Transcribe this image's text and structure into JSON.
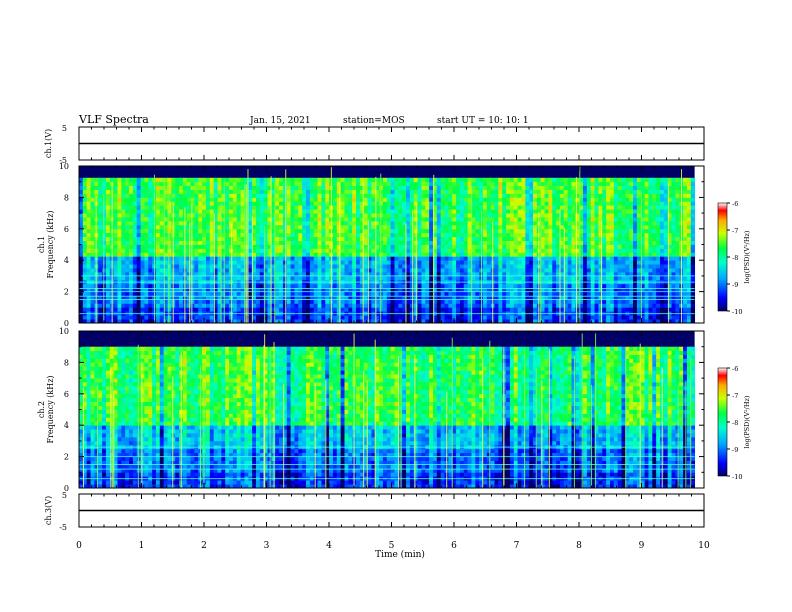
{
  "header": {
    "title": "VLF Spectra",
    "date": "Jan. 15, 2021",
    "station": "station=MOS",
    "start": "start  UT =   10: 10: 1"
  },
  "colors": {
    "spectrum_low": "#000066",
    "spectrum_mid": "#00ff66",
    "spectrum_high": "#ff0000",
    "line_yellow": "#ffff44",
    "line_cyan": "#44ffff"
  },
  "chart_data": [
    {
      "type": "line",
      "panel": "ch1-waveform",
      "ylabel": "ch.1(V)",
      "ylim": [
        -5,
        5
      ],
      "yticks": [
        "5",
        "-5"
      ],
      "xlim": [
        0,
        10
      ],
      "values_description_note": "",
      "x": [
        0,
        10
      ],
      "y": [
        0,
        0
      ]
    },
    {
      "type": "heatmap",
      "panel": "ch1-spectrogram",
      "ylabel": "ch.1\nFrequency (kHz)",
      "xlim": [
        0,
        10
      ],
      "ylim": [
        0,
        10
      ],
      "yticks": [
        "0",
        "2",
        "4",
        "6",
        "8",
        "10"
      ],
      "colorbar": {
        "label": "log(PSD)(V²/Hz)",
        "ticks": [
          "-6",
          "-7",
          "-8",
          "-9",
          "-10"
        ],
        "range": [
          -10,
          -6
        ]
      },
      "bands": [
        {
          "from": 0,
          "to": 1,
          "level": -9.3
        },
        {
          "from": 1,
          "to": 2.5,
          "level": -9.0
        },
        {
          "from": 2.5,
          "to": 4.2,
          "level": -8.7
        },
        {
          "from": 4.2,
          "to": 9.2,
          "level": -7.6
        },
        {
          "from": 9.2,
          "to": 10,
          "level": -10
        }
      ],
      "horizontal_lines_khz": [
        0.6,
        1.5,
        1.7,
        2.0,
        2.2,
        2.6,
        3.0
      ],
      "end_time_min": 9.85
    },
    {
      "type": "heatmap",
      "panel": "ch2-spectrogram",
      "ylabel": "ch.2\nFrequency (kHz)",
      "xlim": [
        0,
        10
      ],
      "ylim": [
        0,
        10
      ],
      "yticks": [
        "0",
        "2",
        "4",
        "6",
        "8",
        "10"
      ],
      "colorbar": {
        "label": "log(PSD)(V²/Hz)",
        "ticks": [
          "-6",
          "-7",
          "-8",
          "-9",
          "-10"
        ],
        "range": [
          -10,
          -6
        ]
      },
      "bands": [
        {
          "from": 0,
          "to": 1,
          "level": -9.3
        },
        {
          "from": 1,
          "to": 2.5,
          "level": -9.0
        },
        {
          "from": 2.5,
          "to": 4.0,
          "level": -8.6
        },
        {
          "from": 4.0,
          "to": 9.0,
          "level": -7.7
        },
        {
          "from": 9.0,
          "to": 10,
          "level": -10
        }
      ],
      "horizontal_lines_khz": [
        0.6,
        1.2,
        1.5,
        2.0,
        2.6
      ],
      "end_time_min": 9.85
    },
    {
      "type": "line",
      "panel": "ch3-waveform",
      "ylabel": "ch.3(V)",
      "ylim": [
        -5,
        5
      ],
      "yticks": [
        "5",
        "-5"
      ],
      "xlim": [
        0,
        10
      ],
      "x": [
        0,
        10
      ],
      "y": [
        0,
        0
      ]
    }
  ],
  "xaxis": {
    "label": "Time (min)",
    "ticks": [
      "0",
      "1",
      "2",
      "3",
      "4",
      "5",
      "6",
      "7",
      "8",
      "9",
      "10"
    ]
  }
}
